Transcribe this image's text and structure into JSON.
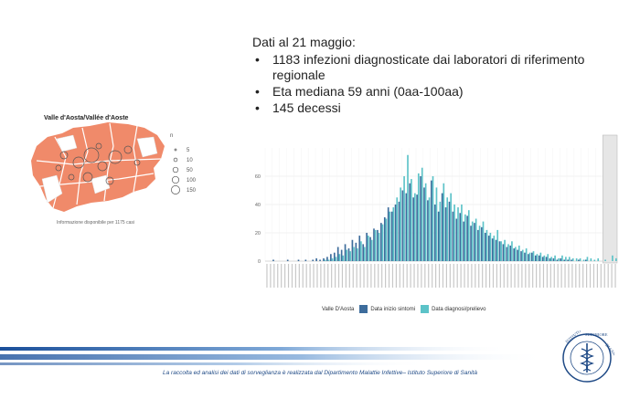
{
  "slide": {
    "heading": "Dati al 21 maggio:",
    "bullets": [
      "1183 infezioni diagnosticate dai laboratori di riferimento regionale",
      "Eta mediana 59 anni (0aa-100aa)",
      "145 decessi"
    ],
    "footer": "La raccolta ed analisi dei dati di sorveglianza è realizzata dal Dipartimento Malattie Infettive– Istituto Superiore di Sanità",
    "logo_text": "ISTITUTO SUPERIORE DI SANITÀ"
  },
  "map": {
    "title": "Valle d'Aosta/Vallée d'Aoste",
    "caption": "Informazione disponibile per 1175 casi",
    "fill_color": "#f08a6a",
    "legend_title": "n",
    "legend_values": [
      "5",
      "10",
      "50",
      "100",
      "150"
    ]
  },
  "chart_data": {
    "type": "bar",
    "title": "",
    "xlabel": "",
    "ylabel": "",
    "ylim": [
      0,
      80
    ],
    "yticks": [
      "0",
      "20",
      "40",
      "60"
    ],
    "legend_title": "Valle D'Aosta",
    "legend_placement": "bottom",
    "colors": {
      "onset": "#3d6c9c",
      "diagnosis": "#5cc3c8",
      "shade": "#e6e6e6"
    },
    "series": [
      {
        "name": "Data inizio sintomi",
        "values": [
          0,
          0,
          1,
          0,
          0,
          0,
          1,
          0,
          0,
          1,
          0,
          1,
          0,
          1,
          2,
          1,
          2,
          3,
          5,
          6,
          10,
          8,
          12,
          9,
          15,
          13,
          18,
          12,
          20,
          17,
          23,
          22,
          27,
          31,
          38,
          35,
          40,
          42,
          50,
          48,
          55,
          45,
          47,
          60,
          52,
          43,
          57,
          40,
          35,
          48,
          38,
          42,
          35,
          30,
          34,
          28,
          32,
          25,
          27,
          22,
          24,
          20,
          18,
          16,
          15,
          14,
          12,
          10,
          11,
          9,
          8,
          7,
          6,
          5,
          6,
          4,
          4,
          3,
          3,
          2,
          2,
          1,
          2,
          1,
          1,
          1,
          0,
          1,
          0,
          1,
          0,
          0,
          0,
          0,
          0,
          0,
          0,
          0
        ]
      },
      {
        "name": "Data diagnosi/prelievo",
        "values": [
          0,
          0,
          0,
          0,
          0,
          0,
          0,
          0,
          0,
          0,
          0,
          0,
          0,
          0,
          0,
          0,
          1,
          1,
          2,
          3,
          5,
          4,
          8,
          7,
          10,
          9,
          14,
          10,
          18,
          15,
          22,
          20,
          26,
          30,
          35,
          38,
          45,
          52,
          60,
          75,
          58,
          48,
          62,
          66,
          55,
          45,
          60,
          52,
          42,
          55,
          45,
          48,
          40,
          38,
          40,
          33,
          36,
          28,
          30,
          25,
          28,
          22,
          20,
          18,
          22,
          14,
          15,
          12,
          14,
          10,
          11,
          8,
          9,
          6,
          7,
          5,
          6,
          4,
          5,
          3,
          4,
          2,
          4,
          3,
          3,
          2,
          2,
          2,
          1,
          3,
          2,
          1,
          2,
          0,
          1,
          0,
          4,
          2
        ]
      }
    ]
  }
}
